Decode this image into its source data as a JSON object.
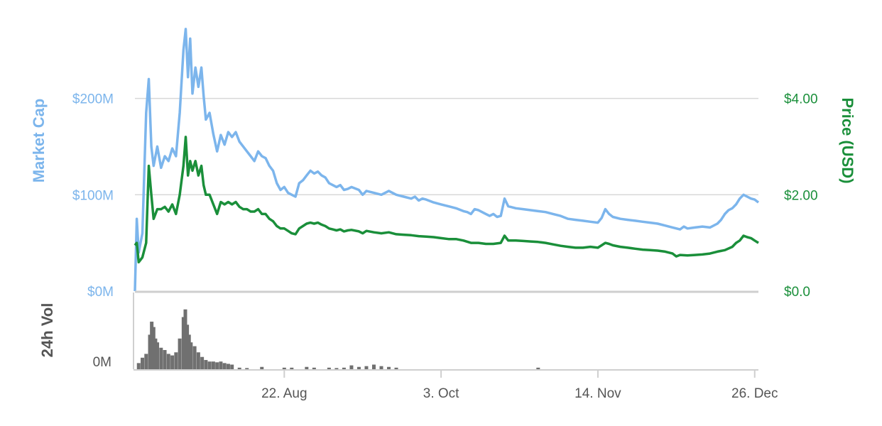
{
  "chart_data": {
    "type": "line",
    "title": "",
    "left_axis": {
      "title": "Market Cap",
      "ticks": [
        {
          "label": "$0M",
          "value": 0
        },
        {
          "label": "$100M",
          "value": 100
        },
        {
          "label": "$200M",
          "value": 200
        }
      ],
      "ylim": [
        0,
        280
      ],
      "unit": "M USD"
    },
    "right_axis": {
      "title": "Price (USD)",
      "ticks": [
        {
          "label": "$0.0",
          "value": 0
        },
        {
          "label": "$2.00",
          "value": 2
        },
        {
          "label": "$4.00",
          "value": 4
        }
      ],
      "ylim": [
        0,
        5.6
      ]
    },
    "volume_axis": {
      "title": "24h Vol",
      "ticks": [
        {
          "label": "0M",
          "value": 0
        }
      ],
      "ylim": [
        0,
        1
      ]
    },
    "x_axis": {
      "ticks": [
        {
          "label": "22. Aug",
          "day": 20
        },
        {
          "label": "3. Oct",
          "day": 62
        },
        {
          "label": "14. Nov",
          "day": 104
        },
        {
          "label": "26. Dec",
          "day": 146
        }
      ],
      "xlim": [
        -20,
        147
      ]
    },
    "grid": true,
    "colors": {
      "market_cap": "#7cb5ec",
      "price": "#1a8f3a",
      "volume": "#707070",
      "grid": "#d8d8d8"
    },
    "series": [
      {
        "name": "Market Cap",
        "axis": "left",
        "points": [
          [
            -20,
            0
          ],
          [
            -19.5,
            75
          ],
          [
            -19,
            40
          ],
          [
            -18,
            60
          ],
          [
            -17,
            185
          ],
          [
            -16.3,
            220
          ],
          [
            -15.6,
            150
          ],
          [
            -15,
            130
          ],
          [
            -14,
            150
          ],
          [
            -13,
            128
          ],
          [
            -12,
            140
          ],
          [
            -11,
            135
          ],
          [
            -10,
            148
          ],
          [
            -9,
            140
          ],
          [
            -8,
            185
          ],
          [
            -7,
            250
          ],
          [
            -6.4,
            272
          ],
          [
            -5.8,
            222
          ],
          [
            -5.2,
            262
          ],
          [
            -4.6,
            205
          ],
          [
            -3.8,
            232
          ],
          [
            -3,
            212
          ],
          [
            -2.2,
            232
          ],
          [
            -1.6,
            203
          ],
          [
            -1,
            178
          ],
          [
            0,
            185
          ],
          [
            1,
            163
          ],
          [
            2,
            145
          ],
          [
            3,
            162
          ],
          [
            4,
            152
          ],
          [
            5,
            165
          ],
          [
            6,
            160
          ],
          [
            7,
            165
          ],
          [
            8,
            155
          ],
          [
            9,
            150
          ],
          [
            10,
            145
          ],
          [
            11,
            140
          ],
          [
            12,
            135
          ],
          [
            13,
            145
          ],
          [
            14,
            140
          ],
          [
            15,
            138
          ],
          [
            16,
            130
          ],
          [
            17,
            125
          ],
          [
            18,
            112
          ],
          [
            19,
            105
          ],
          [
            20,
            108
          ],
          [
            21,
            102
          ],
          [
            22,
            100
          ],
          [
            23,
            98
          ],
          [
            24,
            112
          ],
          [
            25,
            115
          ],
          [
            26,
            120
          ],
          [
            27,
            125
          ],
          [
            28,
            122
          ],
          [
            29,
            124
          ],
          [
            30,
            120
          ],
          [
            31,
            118
          ],
          [
            32,
            112
          ],
          [
            33,
            110
          ],
          [
            34,
            108
          ],
          [
            35,
            110
          ],
          [
            36,
            105
          ],
          [
            37,
            106
          ],
          [
            38,
            108
          ],
          [
            40,
            105
          ],
          [
            41,
            100
          ],
          [
            42,
            104
          ],
          [
            44,
            102
          ],
          [
            46,
            100
          ],
          [
            48,
            104
          ],
          [
            50,
            100
          ],
          [
            52,
            98
          ],
          [
            54,
            96
          ],
          [
            55,
            98
          ],
          [
            56,
            94
          ],
          [
            57,
            96
          ],
          [
            58,
            95
          ],
          [
            60,
            92
          ],
          [
            62,
            90
          ],
          [
            64,
            88
          ],
          [
            66,
            86
          ],
          [
            68,
            83
          ],
          [
            69,
            82
          ],
          [
            70,
            80
          ],
          [
            71,
            85
          ],
          [
            72,
            84
          ],
          [
            73,
            82
          ],
          [
            74,
            80
          ],
          [
            75,
            78
          ],
          [
            76,
            80
          ],
          [
            77,
            77
          ],
          [
            78,
            78
          ],
          [
            79,
            96
          ],
          [
            80,
            88
          ],
          [
            82,
            86
          ],
          [
            84,
            85
          ],
          [
            86,
            84
          ],
          [
            88,
            83
          ],
          [
            90,
            82
          ],
          [
            92,
            80
          ],
          [
            94,
            78
          ],
          [
            96,
            75
          ],
          [
            98,
            74
          ],
          [
            100,
            73
          ],
          [
            102,
            72
          ],
          [
            104,
            71
          ],
          [
            105,
            76
          ],
          [
            106,
            85
          ],
          [
            107,
            80
          ],
          [
            108,
            77
          ],
          [
            110,
            75
          ],
          [
            112,
            74
          ],
          [
            114,
            73
          ],
          [
            116,
            72
          ],
          [
            118,
            71
          ],
          [
            120,
            70
          ],
          [
            122,
            68
          ],
          [
            124,
            66
          ],
          [
            126,
            64
          ],
          [
            127,
            67
          ],
          [
            128,
            65
          ],
          [
            130,
            66
          ],
          [
            132,
            67
          ],
          [
            134,
            66
          ],
          [
            136,
            70
          ],
          [
            137,
            74
          ],
          [
            138,
            80
          ],
          [
            139,
            84
          ],
          [
            140,
            86
          ],
          [
            141,
            90
          ],
          [
            142,
            96
          ],
          [
            143,
            100
          ],
          [
            144,
            98
          ],
          [
            145,
            96
          ],
          [
            146,
            95
          ],
          [
            147,
            92
          ]
        ]
      },
      {
        "name": "Price (USD)",
        "axis": "right",
        "points": [
          [
            -20,
            0.95
          ],
          [
            -19.5,
            1.0
          ],
          [
            -19,
            0.6
          ],
          [
            -18,
            0.7
          ],
          [
            -17,
            1.0
          ],
          [
            -16.3,
            2.6
          ],
          [
            -15.6,
            2.0
          ],
          [
            -15,
            1.5
          ],
          [
            -14,
            1.7
          ],
          [
            -13,
            1.7
          ],
          [
            -12,
            1.75
          ],
          [
            -11,
            1.65
          ],
          [
            -10,
            1.8
          ],
          [
            -9,
            1.6
          ],
          [
            -8,
            2.0
          ],
          [
            -7,
            2.6
          ],
          [
            -6.4,
            3.2
          ],
          [
            -5.8,
            2.4
          ],
          [
            -5.2,
            2.7
          ],
          [
            -4.6,
            2.5
          ],
          [
            -3.8,
            2.7
          ],
          [
            -3,
            2.4
          ],
          [
            -2.2,
            2.6
          ],
          [
            -1.6,
            2.2
          ],
          [
            -1,
            2.0
          ],
          [
            0,
            2.0
          ],
          [
            1,
            1.8
          ],
          [
            2,
            1.6
          ],
          [
            3,
            1.85
          ],
          [
            4,
            1.8
          ],
          [
            5,
            1.85
          ],
          [
            6,
            1.8
          ],
          [
            7,
            1.85
          ],
          [
            8,
            1.75
          ],
          [
            9,
            1.7
          ],
          [
            10,
            1.7
          ],
          [
            11,
            1.65
          ],
          [
            12,
            1.65
          ],
          [
            13,
            1.7
          ],
          [
            14,
            1.6
          ],
          [
            15,
            1.6
          ],
          [
            16,
            1.5
          ],
          [
            17,
            1.45
          ],
          [
            18,
            1.35
          ],
          [
            19,
            1.3
          ],
          [
            20,
            1.3
          ],
          [
            21,
            1.25
          ],
          [
            22,
            1.2
          ],
          [
            23,
            1.18
          ],
          [
            24,
            1.3
          ],
          [
            25,
            1.35
          ],
          [
            26,
            1.4
          ],
          [
            27,
            1.42
          ],
          [
            28,
            1.4
          ],
          [
            29,
            1.42
          ],
          [
            30,
            1.38
          ],
          [
            31,
            1.35
          ],
          [
            32,
            1.3
          ],
          [
            33,
            1.28
          ],
          [
            34,
            1.26
          ],
          [
            35,
            1.28
          ],
          [
            36,
            1.24
          ],
          [
            37,
            1.26
          ],
          [
            38,
            1.27
          ],
          [
            40,
            1.24
          ],
          [
            41,
            1.2
          ],
          [
            42,
            1.25
          ],
          [
            44,
            1.22
          ],
          [
            46,
            1.2
          ],
          [
            48,
            1.22
          ],
          [
            50,
            1.18
          ],
          [
            52,
            1.17
          ],
          [
            54,
            1.16
          ],
          [
            56,
            1.14
          ],
          [
            58,
            1.13
          ],
          [
            60,
            1.12
          ],
          [
            62,
            1.1
          ],
          [
            64,
            1.08
          ],
          [
            66,
            1.08
          ],
          [
            68,
            1.05
          ],
          [
            70,
            1.0
          ],
          [
            72,
            1.0
          ],
          [
            74,
            0.98
          ],
          [
            76,
            0.98
          ],
          [
            78,
            1.0
          ],
          [
            79,
            1.15
          ],
          [
            80,
            1.05
          ],
          [
            82,
            1.05
          ],
          [
            84,
            1.04
          ],
          [
            86,
            1.03
          ],
          [
            88,
            1.02
          ],
          [
            90,
            1.0
          ],
          [
            92,
            0.97
          ],
          [
            94,
            0.94
          ],
          [
            96,
            0.92
          ],
          [
            98,
            0.9
          ],
          [
            100,
            0.9
          ],
          [
            102,
            0.92
          ],
          [
            104,
            0.9
          ],
          [
            105,
            0.95
          ],
          [
            106,
            1.0
          ],
          [
            107,
            0.98
          ],
          [
            108,
            0.95
          ],
          [
            110,
            0.92
          ],
          [
            112,
            0.9
          ],
          [
            114,
            0.88
          ],
          [
            116,
            0.86
          ],
          [
            118,
            0.85
          ],
          [
            120,
            0.84
          ],
          [
            122,
            0.82
          ],
          [
            124,
            0.78
          ],
          [
            125,
            0.72
          ],
          [
            126,
            0.75
          ],
          [
            128,
            0.74
          ],
          [
            130,
            0.75
          ],
          [
            132,
            0.76
          ],
          [
            134,
            0.78
          ],
          [
            136,
            0.82
          ],
          [
            138,
            0.85
          ],
          [
            140,
            0.92
          ],
          [
            141,
            1.0
          ],
          [
            142,
            1.05
          ],
          [
            143,
            1.15
          ],
          [
            144,
            1.12
          ],
          [
            145,
            1.1
          ],
          [
            146,
            1.05
          ],
          [
            147,
            1.0
          ]
        ]
      },
      {
        "name": "24h Vol",
        "axis": "volume",
        "type": "bar",
        "points": [
          [
            -19,
            0.08
          ],
          [
            -18,
            0.15
          ],
          [
            -17,
            0.2
          ],
          [
            -16,
            0.45
          ],
          [
            -15.5,
            0.62
          ],
          [
            -15,
            0.55
          ],
          [
            -14.5,
            0.4
          ],
          [
            -14,
            0.35
          ],
          [
            -13,
            0.28
          ],
          [
            -12,
            0.25
          ],
          [
            -11,
            0.2
          ],
          [
            -10,
            0.18
          ],
          [
            -9,
            0.22
          ],
          [
            -8,
            0.4
          ],
          [
            -7,
            0.68
          ],
          [
            -6.5,
            0.78
          ],
          [
            -6,
            0.58
          ],
          [
            -5.5,
            0.45
          ],
          [
            -5,
            0.35
          ],
          [
            -4,
            0.3
          ],
          [
            -3,
            0.22
          ],
          [
            -2,
            0.16
          ],
          [
            -1,
            0.12
          ],
          [
            0,
            0.1
          ],
          [
            1,
            0.1
          ],
          [
            2,
            0.09
          ],
          [
            3,
            0.1
          ],
          [
            4,
            0.08
          ],
          [
            5,
            0.07
          ],
          [
            6,
            0.06
          ],
          [
            8,
            0.02
          ],
          [
            10,
            0.015
          ],
          [
            14,
            0.03
          ],
          [
            20,
            0.02
          ],
          [
            22,
            0.02
          ],
          [
            26,
            0.03
          ],
          [
            28,
            0.02
          ],
          [
            32,
            0.02
          ],
          [
            34,
            0.015
          ],
          [
            36,
            0.02
          ],
          [
            38,
            0.05
          ],
          [
            40,
            0.03
          ],
          [
            42,
            0.04
          ],
          [
            44,
            0.06
          ],
          [
            46,
            0.04
          ],
          [
            48,
            0.03
          ],
          [
            50,
            0.02
          ],
          [
            88,
            0.02
          ]
        ]
      }
    ]
  }
}
